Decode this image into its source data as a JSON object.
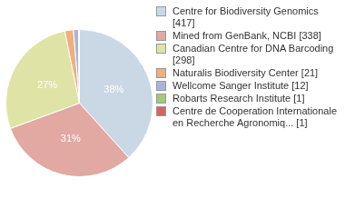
{
  "chart_data": {
    "type": "pie",
    "categories": [
      "Centre for Biodiversity Genomics [417]",
      "Mined from GenBank, NCBI [338]",
      "Canadian Centre for DNA Barcoding [298]",
      "Naturalis Biodiversity Center [21]",
      "Wellcome Sanger Institute [12]",
      "Robarts Research Institute [1]",
      "Centre de Cooperation Internationale en Recherche Agronomiq... [1]"
    ],
    "values": [
      38.3,
      31.1,
      27.4,
      1.9,
      1.1,
      0.1,
      0.1
    ],
    "value_labels": [
      "38%",
      "31%",
      "27%",
      null,
      null,
      null,
      null
    ],
    "colors": [
      "#cad8e6",
      "#e2a8a2",
      "#dfe4a6",
      "#f0b07c",
      "#aab4da",
      "#a3c97c",
      "#d9625c"
    ],
    "data_labels": true,
    "legend": "right"
  }
}
